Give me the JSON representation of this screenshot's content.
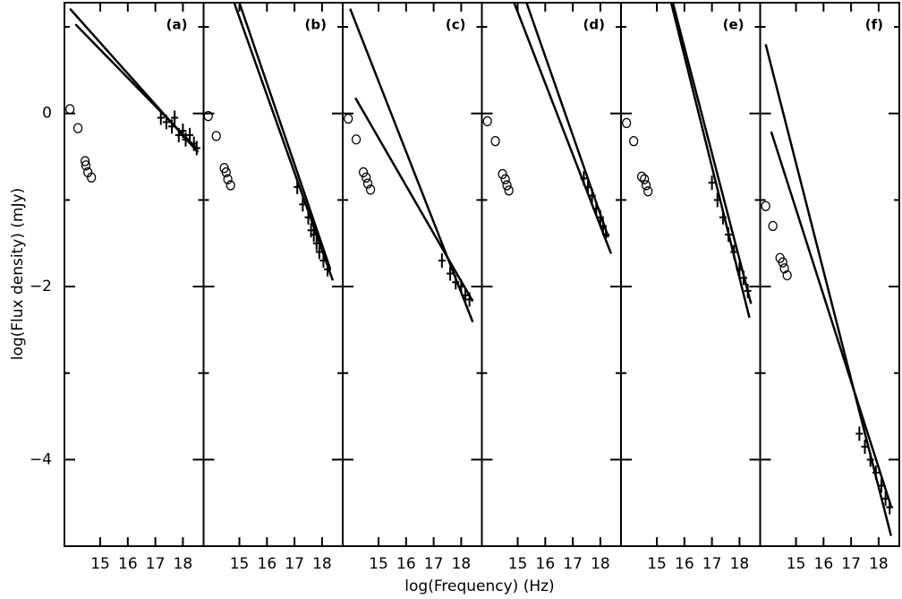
{
  "chart_data": [
    {
      "type": "scatter",
      "panel_label": "(a)",
      "ylabel": "log(Flux density)  (mJy)",
      "xlabel": "log(Frequency)  (Hz)",
      "xlim": [
        13.7,
        18.75
      ],
      "ylim": [
        -5,
        1.28
      ],
      "xticks": [
        15,
        16,
        17,
        18
      ],
      "yticks": [
        0,
        {
          "value": -2,
          "label": "−2"
        },
        {
          "value": -4,
          "label": "−4"
        }
      ],
      "yminor": [
        1,
        -1,
        -3
      ],
      "optical": {
        "x": [
          13.9,
          14.19,
          14.45,
          14.48,
          14.55,
          14.68
        ],
        "y": [
          0.05,
          -0.17,
          -0.55,
          -0.6,
          -0.68,
          -0.74
        ]
      },
      "xray": {
        "x": [
          17.2,
          17.4,
          17.6,
          17.7,
          17.85,
          18.0,
          18.1,
          18.25,
          18.4,
          18.5
        ],
        "y": [
          -0.05,
          -0.1,
          -0.15,
          -0.05,
          -0.25,
          -0.2,
          -0.3,
          -0.25,
          -0.35,
          -0.4
        ]
      },
      "lines": [
        {
          "x": [
            13.9,
            18.55
          ],
          "y": [
            1.21,
            -0.45
          ]
        },
        {
          "x": [
            14.1,
            18.55
          ],
          "y": [
            1.03,
            -0.42
          ]
        }
      ]
    },
    {
      "type": "scatter",
      "panel_label": "(b)",
      "xlim": [
        13.7,
        18.75
      ],
      "ylim": [
        -5,
        1.28
      ],
      "xticks": [
        15,
        16,
        17,
        18
      ],
      "yticks": [
        0,
        {
          "value": -2,
          "label": "−2"
        },
        {
          "value": -4,
          "label": "−4"
        }
      ],
      "yminor": [
        1,
        -1,
        -3
      ],
      "optical": {
        "x": [
          13.87,
          14.16,
          14.45,
          14.52,
          14.58,
          14.68
        ],
        "y": [
          -0.03,
          -0.26,
          -0.63,
          -0.68,
          -0.76,
          -0.83
        ]
      },
      "xray": {
        "x": [
          17.1,
          17.3,
          17.5,
          17.6,
          17.7,
          17.8,
          17.9,
          18.05,
          18.2
        ],
        "y": [
          -0.85,
          -1.05,
          -1.2,
          -1.35,
          -1.4,
          -1.5,
          -1.6,
          -1.7,
          -1.8
        ]
      },
      "lines": [
        {
          "x": [
            14.81,
            18.39
          ],
          "y": [
            1.28,
            -1.93
          ]
        },
        {
          "x": [
            15.0,
            18.29
          ],
          "y": [
            1.28,
            -1.79
          ]
        }
      ]
    },
    {
      "type": "scatter",
      "panel_label": "(c)",
      "xlim": [
        13.7,
        18.75
      ],
      "ylim": [
        -5,
        1.28
      ],
      "xticks": [
        15,
        16,
        17,
        18
      ],
      "yticks": [
        0,
        {
          "value": -2,
          "label": "−2"
        },
        {
          "value": -4,
          "label": "−4"
        }
      ],
      "yminor": [
        1,
        -1,
        -3
      ],
      "optical": {
        "x": [
          13.9,
          14.19,
          14.45,
          14.55,
          14.61,
          14.71
        ],
        "y": [
          -0.06,
          -0.3,
          -0.68,
          -0.74,
          -0.81,
          -0.88
        ]
      },
      "xray": {
        "x": [
          17.3,
          17.6,
          17.8,
          18.0,
          18.15,
          18.3
        ],
        "y": [
          -1.7,
          -1.85,
          -1.95,
          -2.0,
          -2.1,
          -2.15
        ]
      },
      "lines": [
        {
          "x": [
            13.97,
            18.42
          ],
          "y": [
            1.21,
            -2.41
          ]
        },
        {
          "x": [
            14.16,
            18.42
          ],
          "y": [
            0.18,
            -2.17
          ]
        }
      ]
    },
    {
      "type": "scatter",
      "panel_label": "(d)",
      "xlim": [
        13.7,
        18.75
      ],
      "ylim": [
        -5,
        1.28
      ],
      "xticks": [
        15,
        16,
        17,
        18
      ],
      "yticks": [
        0,
        {
          "value": -2,
          "label": "−2"
        },
        {
          "value": -4,
          "label": "−4"
        }
      ],
      "yminor": [
        1,
        -1,
        -3
      ],
      "optical": {
        "x": [
          13.9,
          14.19,
          14.45,
          14.55,
          14.61,
          14.68
        ],
        "y": [
          -0.09,
          -0.32,
          -0.7,
          -0.76,
          -0.83,
          -0.89
        ]
      },
      "xray": {
        "x": [
          17.4,
          17.55,
          17.7,
          17.85,
          18.0,
          18.1,
          18.2
        ],
        "y": [
          -0.75,
          -0.85,
          -0.95,
          -1.1,
          -1.2,
          -1.3,
          -1.4
        ]
      },
      "lines": [
        {
          "x": [
            14.87,
            18.39
          ],
          "y": [
            1.28,
            -1.62
          ]
        },
        {
          "x": [
            15.32,
            18.29
          ],
          "y": [
            1.28,
            -1.43
          ]
        }
      ]
    },
    {
      "type": "scatter",
      "panel_label": "(e)",
      "xlim": [
        13.7,
        18.75
      ],
      "ylim": [
        -5,
        1.28
      ],
      "xticks": [
        15,
        16,
        17,
        18
      ],
      "yticks": [
        0,
        {
          "value": -2,
          "label": "−2"
        },
        {
          "value": -4,
          "label": "−4"
        }
      ],
      "yminor": [
        1,
        -1,
        -3
      ],
      "optical": {
        "x": [
          13.9,
          14.16,
          14.45,
          14.55,
          14.61,
          14.68
        ],
        "y": [
          -0.11,
          -0.32,
          -0.73,
          -0.76,
          -0.83,
          -0.9
        ]
      },
      "xray": {
        "x": [
          17.0,
          17.2,
          17.4,
          17.6,
          17.8,
          18.0,
          18.15,
          18.3
        ],
        "y": [
          -0.8,
          -1.0,
          -1.2,
          -1.4,
          -1.6,
          -1.8,
          -1.9,
          -2.05
        ]
      },
      "lines": [
        {
          "x": [
            15.52,
            18.36
          ],
          "y": [
            1.28,
            -2.36
          ]
        },
        {
          "x": [
            15.58,
            18.42
          ],
          "y": [
            1.28,
            -2.2
          ]
        }
      ]
    },
    {
      "type": "scatter",
      "panel_label": "(f)",
      "xlim": [
        13.7,
        18.75
      ],
      "ylim": [
        -5,
        1.28
      ],
      "xticks": [
        15,
        16,
        17,
        18
      ],
      "yticks": [
        0,
        {
          "value": -2,
          "label": "−2"
        },
        {
          "value": -4,
          "label": "−4"
        }
      ],
      "yminor": [
        1,
        -1,
        -3
      ],
      "optical": {
        "x": [
          13.9,
          14.16,
          14.42,
          14.52,
          14.58,
          14.68
        ],
        "y": [
          -1.07,
          -1.3,
          -1.67,
          -1.72,
          -1.79,
          -1.87
        ]
      },
      "xray": {
        "x": [
          17.3,
          17.5,
          17.7,
          17.9,
          18.1,
          18.25,
          18.4
        ],
        "y": [
          -3.7,
          -3.85,
          -4.0,
          -4.15,
          -4.3,
          -4.45,
          -4.55
        ]
      },
      "lines": [
        {
          "x": [
            13.9,
            18.45
          ],
          "y": [
            0.8,
            -4.88
          ]
        },
        {
          "x": [
            14.1,
            18.45
          ],
          "y": [
            -0.21,
            -4.54
          ]
        }
      ]
    }
  ]
}
